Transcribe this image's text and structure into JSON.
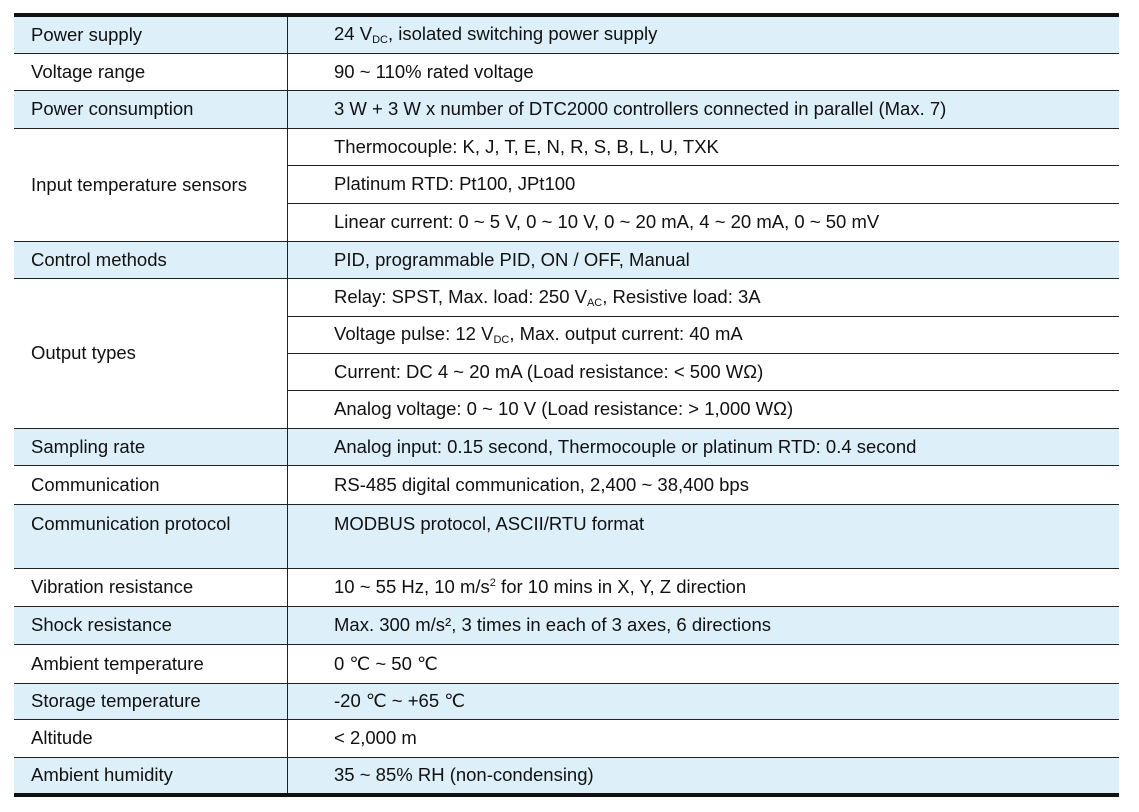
{
  "spec_table": {
    "rows": [
      {
        "label": "Power supply",
        "shaded": true,
        "values": [
          [
            {
              "t": "24 V"
            },
            {
              "sub": "DC"
            },
            {
              "t": ", isolated switching power supply"
            }
          ]
        ]
      },
      {
        "label": "Voltage range",
        "shaded": false,
        "values": [
          [
            {
              "t": "90 ~ 110% rated voltage"
            }
          ]
        ]
      },
      {
        "label": "Power consumption",
        "shaded": true,
        "values": [
          [
            {
              "t": "3 W + 3 W x number of DTC2000 controllers connected in parallel (Max. 7)"
            }
          ]
        ]
      },
      {
        "label": "Input temperature sensors",
        "shaded": false,
        "values": [
          [
            {
              "t": "Thermocouple: K, J, T, E, N, R, S, B, L, U, TXK"
            }
          ],
          [
            {
              "t": "Platinum RTD: Pt100, JPt100"
            }
          ],
          [
            {
              "t": "Linear current: 0 ~ 5 V, 0 ~ 10 V, 0 ~ 20 mA, 4 ~ 20 mA, 0 ~ 50 mV"
            }
          ]
        ]
      },
      {
        "label": "Control methods",
        "shaded": true,
        "values": [
          [
            {
              "t": "PID, programmable PID, ON / OFF, Manual"
            }
          ]
        ]
      },
      {
        "label": "Output types",
        "shaded": false,
        "values": [
          [
            {
              "t": "Relay: SPST, Max. load: 250 V"
            },
            {
              "sub": "AC"
            },
            {
              "t": ", Resistive load: 3A"
            }
          ],
          [
            {
              "t": "Voltage pulse: 12 V"
            },
            {
              "sub": "DC"
            },
            {
              "t": ", Max. output current: 40 mA"
            }
          ],
          [
            {
              "t": "Current: DC 4 ~ 20 mA (Load resistance: < 500 WΩ)"
            }
          ],
          [
            {
              "t": "Analog voltage: 0 ~ 10 V (Load resistance: > 1,000 WΩ)"
            }
          ]
        ]
      },
      {
        "label": "Sampling rate",
        "shaded": true,
        "values": [
          [
            {
              "t": "Analog input: 0.15 second, Thermocouple or platinum RTD: 0.4 second"
            }
          ]
        ]
      },
      {
        "label": "Communication",
        "shaded": false,
        "values": [
          [
            {
              "t": "RS-485 digital communication, 2,400 ~ 38,400 bps"
            }
          ]
        ]
      },
      {
        "label": "Communication protocol",
        "shaded": true,
        "top": true,
        "values": [
          [
            {
              "t": "MODBUS protocol, ASCII/RTU format"
            }
          ]
        ]
      },
      {
        "label": "Vibration resistance",
        "shaded": false,
        "values": [
          [
            {
              "t": "10 ~ 55 Hz, 10 m/s"
            },
            {
              "sup": "2"
            },
            {
              "t": " for 10 mins in X, Y, Z direction"
            }
          ]
        ]
      },
      {
        "label": "Shock resistance",
        "shaded": true,
        "values": [
          [
            {
              "t": "Max. 300 m/s², 3 times in each of 3 axes, 6 directions"
            }
          ]
        ]
      },
      {
        "label": "Ambient temperature",
        "shaded": false,
        "values": [
          [
            {
              "t": "0 ℃ ~ 50 ℃"
            }
          ]
        ]
      },
      {
        "label": "Storage temperature",
        "shaded": true,
        "values": [
          [
            {
              "t": "-20 ℃ ~ +65 ℃"
            }
          ]
        ]
      },
      {
        "label": "Altitude",
        "shaded": false,
        "values": [
          [
            {
              "t": "< 2,000 m"
            }
          ]
        ]
      },
      {
        "label": "Ambient humidity",
        "shaded": true,
        "values": [
          [
            {
              "t": "35 ~ 85% RH (non-condensing)"
            }
          ]
        ]
      }
    ]
  }
}
